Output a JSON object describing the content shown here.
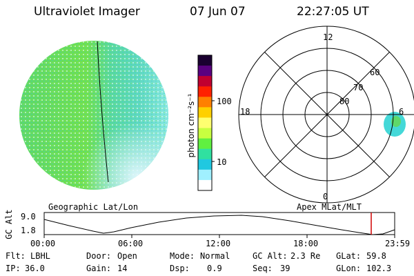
{
  "header": {
    "instrument": "Ultraviolet Imager",
    "date": "07 Jun 07",
    "time": "22:27:05 UT"
  },
  "colorbar": {
    "unit_label": "photon cm⁻²s⁻¹",
    "ticks": [
      "100",
      "10"
    ],
    "scale": "log",
    "colors": [
      "#1a0030",
      "#5a0080",
      "#c00030",
      "#ff2000",
      "#ff8000",
      "#ffd000",
      "#ffff70",
      "#c8ff40",
      "#60f040",
      "#30e0a0",
      "#20c8e0",
      "#a0f0ff",
      "#ffffff"
    ]
  },
  "geo_map": {
    "label": "Geographic Lat/Lon",
    "colors": {
      "main": "#5ed86a",
      "light": "#78e640",
      "cyan": "#44d8d8",
      "white": "#d8f4ff"
    }
  },
  "polar_map": {
    "label": "Apex MLat/MLT",
    "mlt_labels": {
      "top": "12",
      "left": "18",
      "right": "6",
      "bottom": "0"
    },
    "lat_labels": [
      "60",
      "70",
      "80"
    ]
  },
  "altitude_plot": {
    "ylabel": "GC Alt",
    "yticks": [
      "9.0",
      "1.8"
    ],
    "xticks": [
      "00:00",
      "06:00",
      "12:00",
      "18:00",
      "23:59"
    ],
    "marker_color": "#d00000"
  },
  "footer": {
    "row1": {
      "flt_label": "Flt:",
      "flt_value": "LBHL",
      "door_label": "Door:",
      "door_value": "Open",
      "mode_label": "Mode:",
      "mode_value": "Normal",
      "gcalt_label": "GC Alt:",
      "gcalt_value": "2.3 Re",
      "glat_label": "GLat:",
      "glat_value": "59.8"
    },
    "row2": {
      "ip_label": "IP:",
      "ip_value": "36.0",
      "gain_label": "Gain:",
      "gain_value": "14",
      "dsp_label": "Dsp:",
      "dsp_value": "0.9",
      "seq_label": "Seq:",
      "seq_value": "39",
      "glon_label": "GLon:",
      "glon_value": "102.3"
    }
  }
}
